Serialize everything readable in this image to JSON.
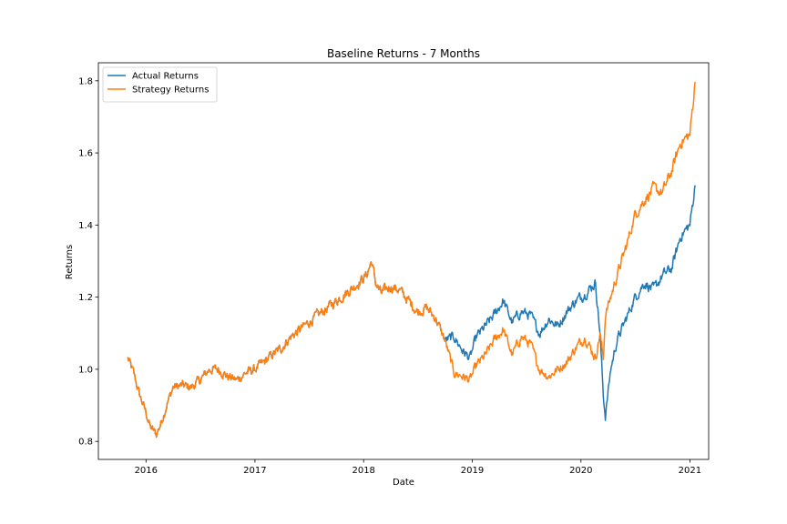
{
  "chart_data": {
    "type": "line",
    "title": "Baseline Returns - 7 Months",
    "xlabel": "Date",
    "ylabel": "Returns",
    "xlim": [
      "2015-07-25",
      "2021-03-05"
    ],
    "ylim": [
      0.75,
      1.85
    ],
    "x_ticks": [
      "2016-01-01",
      "2017-01-01",
      "2018-01-01",
      "2019-01-01",
      "2020-01-01",
      "2021-01-01"
    ],
    "x_tick_labels": [
      "2016",
      "2017",
      "2018",
      "2019",
      "2020",
      "2021"
    ],
    "y_ticks": [
      0.8,
      1.0,
      1.2,
      1.4,
      1.6,
      1.8
    ],
    "y_tick_labels": [
      "0.8",
      "1.0",
      "1.2",
      "1.4",
      "1.6",
      "1.8"
    ],
    "grid": false,
    "legend_placement": "top-left",
    "series": [
      {
        "name": "Actual Returns",
        "color": "#1f77b4",
        "x": [
          "2015-11-01",
          "2015-11-20",
          "2015-12-10",
          "2016-01-01",
          "2016-01-15",
          "2016-02-05",
          "2016-02-20",
          "2016-03-10",
          "2016-04-01",
          "2016-05-01",
          "2016-06-01",
          "2016-07-01",
          "2016-08-01",
          "2016-09-01",
          "2016-10-01",
          "2016-11-01",
          "2016-12-01",
          "2017-01-01",
          "2017-02-01",
          "2017-03-01",
          "2017-04-01",
          "2017-05-01",
          "2017-06-01",
          "2017-07-01",
          "2017-08-01",
          "2017-09-01",
          "2017-10-01",
          "2017-11-01",
          "2017-12-01",
          "2018-01-10",
          "2018-01-28",
          "2018-02-10",
          "2018-03-01",
          "2018-04-01",
          "2018-05-01",
          "2018-06-01",
          "2018-07-01",
          "2018-08-01",
          "2018-09-01",
          "2018-10-01",
          "2018-11-01",
          "2018-12-01",
          "2018-12-24",
          "2019-01-15",
          "2019-02-15",
          "2019-03-15",
          "2019-04-15",
          "2019-05-15",
          "2019-06-15",
          "2019-07-15",
          "2019-08-15",
          "2019-09-15",
          "2019-10-15",
          "2019-11-15",
          "2019-12-15",
          "2020-01-15",
          "2020-02-19",
          "2020-03-05",
          "2020-03-16",
          "2020-03-23",
          "2020-04-10",
          "2020-05-01",
          "2020-06-01",
          "2020-07-01",
          "2020-08-01",
          "2020-09-01",
          "2020-10-01",
          "2020-11-01",
          "2020-12-01",
          "2021-01-01",
          "2021-01-20"
        ],
        "values": [
          1.03,
          0.99,
          0.93,
          0.88,
          0.84,
          0.82,
          0.85,
          0.9,
          0.95,
          0.955,
          0.95,
          0.97,
          1.0,
          1.0,
          0.98,
          0.97,
          0.99,
          1.0,
          1.02,
          1.04,
          1.06,
          1.09,
          1.11,
          1.13,
          1.15,
          1.17,
          1.19,
          1.21,
          1.23,
          1.26,
          1.3,
          1.24,
          1.21,
          1.23,
          1.22,
          1.19,
          1.16,
          1.17,
          1.14,
          1.08,
          1.09,
          1.05,
          1.03,
          1.09,
          1.12,
          1.15,
          1.19,
          1.13,
          1.16,
          1.15,
          1.1,
          1.14,
          1.12,
          1.16,
          1.19,
          1.21,
          1.24,
          1.1,
          0.93,
          0.87,
          1.0,
          1.08,
          1.14,
          1.2,
          1.24,
          1.22,
          1.26,
          1.28,
          1.37,
          1.4,
          1.52
        ]
      },
      {
        "name": "Strategy Returns",
        "color": "#ff7f0e",
        "x": [
          "2015-11-01",
          "2015-11-20",
          "2015-12-10",
          "2016-01-01",
          "2016-01-15",
          "2016-02-05",
          "2016-02-20",
          "2016-03-10",
          "2016-04-01",
          "2016-05-01",
          "2016-06-01",
          "2016-07-01",
          "2016-08-01",
          "2016-09-01",
          "2016-10-01",
          "2016-11-01",
          "2016-12-01",
          "2017-01-01",
          "2017-02-01",
          "2017-03-01",
          "2017-04-01",
          "2017-05-01",
          "2017-06-01",
          "2017-07-01",
          "2017-08-01",
          "2017-09-01",
          "2017-10-01",
          "2017-11-01",
          "2017-12-01",
          "2018-01-10",
          "2018-01-28",
          "2018-02-10",
          "2018-03-01",
          "2018-04-01",
          "2018-05-01",
          "2018-06-01",
          "2018-07-01",
          "2018-08-01",
          "2018-09-01",
          "2018-10-01",
          "2018-11-01",
          "2018-12-01",
          "2018-12-24",
          "2019-01-15",
          "2019-02-15",
          "2019-03-15",
          "2019-04-15",
          "2019-05-15",
          "2019-06-15",
          "2019-07-15",
          "2019-08-15",
          "2019-09-15",
          "2019-10-15",
          "2019-11-15",
          "2019-12-15",
          "2020-01-15",
          "2020-02-19",
          "2020-03-05",
          "2020-03-16",
          "2020-03-23",
          "2020-04-10",
          "2020-05-01",
          "2020-06-01",
          "2020-07-01",
          "2020-08-01",
          "2020-09-01",
          "2020-10-01",
          "2020-11-01",
          "2020-12-01",
          "2021-01-01",
          "2021-01-20"
        ],
        "values": [
          1.03,
          0.99,
          0.93,
          0.88,
          0.84,
          0.82,
          0.85,
          0.9,
          0.95,
          0.955,
          0.95,
          0.97,
          1.0,
          1.0,
          0.98,
          0.97,
          0.99,
          1.0,
          1.02,
          1.04,
          1.06,
          1.09,
          1.11,
          1.13,
          1.15,
          1.17,
          1.19,
          1.21,
          1.23,
          1.26,
          1.3,
          1.24,
          1.21,
          1.23,
          1.22,
          1.19,
          1.16,
          1.17,
          1.14,
          1.08,
          0.99,
          0.98,
          0.97,
          1.01,
          1.04,
          1.08,
          1.11,
          1.04,
          1.09,
          1.07,
          1.0,
          0.98,
          1.0,
          1.02,
          1.06,
          1.09,
          1.03,
          1.1,
          1.03,
          1.15,
          1.2,
          1.26,
          1.34,
          1.43,
          1.47,
          1.5,
          1.49,
          1.55,
          1.63,
          1.65,
          1.81
        ]
      }
    ]
  }
}
